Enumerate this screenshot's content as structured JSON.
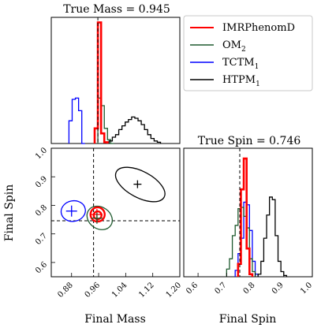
{
  "chart_data": {
    "type": "corner",
    "legend_placement": "top-right",
    "colors": {
      "IMRPhenomD": "#ff0000",
      "OM": "#1e5a2e",
      "TCTM": "#0000ff",
      "HTPM": "#000000"
    },
    "legend": [
      {
        "key": "IMRPhenomD",
        "base": "IMRPhenomD",
        "sub": ""
      },
      {
        "key": "OM",
        "base": "OM",
        "sub": "2"
      },
      {
        "key": "TCTM",
        "base": "TCTM",
        "sub": "1"
      },
      {
        "key": "HTPM",
        "base": "HTPM",
        "sub": "1"
      }
    ],
    "true_values": {
      "mass": 0.945,
      "spin": 0.746
    },
    "mass_hist": {
      "title": "True Mass = 0.945",
      "xlim": [
        0.8,
        1.2
      ],
      "ylim": [
        0,
        1.0
      ],
      "series": [
        {
          "key": "TCTM",
          "edges": [
            0.855,
            0.865,
            0.875,
            0.885,
            0.895,
            0.905
          ],
          "values": [
            0.18,
            0.35,
            0.36,
            0.26,
            0.0
          ]
        },
        {
          "key": "IMRPhenomD",
          "edges": [
            0.935,
            0.945,
            0.955,
            0.965,
            0.975
          ],
          "values": [
            0.12,
            0.96,
            0.08,
            0.01
          ]
        },
        {
          "key": "OM",
          "edges": [
            0.945,
            0.955,
            0.965,
            0.975,
            0.985,
            0.995
          ],
          "values": [
            0.36,
            0.3,
            0.12,
            0.03,
            0.0
          ]
        },
        {
          "key": "HTPM",
          "edges": [
            0.98,
            0.99,
            1.0,
            1.01,
            1.02,
            1.03,
            1.04,
            1.05,
            1.06,
            1.07,
            1.08,
            1.09,
            1.1,
            1.11,
            1.12,
            1.13,
            1.14
          ],
          "values": [
            0.02,
            0.05,
            0.07,
            0.11,
            0.14,
            0.17,
            0.19,
            0.21,
            0.2,
            0.18,
            0.15,
            0.11,
            0.07,
            0.04,
            0.02,
            0.01
          ]
        }
      ]
    },
    "spin_hist": {
      "title": "True Spin = 0.746",
      "xlabel": "Final Spin",
      "xlim": [
        0.55,
        1.0
      ],
      "ylim": [
        0,
        1.0
      ],
      "xticks": [
        "0.6",
        "0.7",
        "0.8",
        "0.9",
        "1.0"
      ],
      "series": [
        {
          "key": "OM",
          "edges": [
            0.7,
            0.71,
            0.72,
            0.73,
            0.74,
            0.75,
            0.76,
            0.77,
            0.78,
            0.79,
            0.8
          ],
          "values": [
            0.06,
            0.14,
            0.32,
            0.4,
            0.53,
            0.54,
            0.47,
            0.38,
            0.14,
            0.04
          ]
        },
        {
          "key": "TCTM",
          "edges": [
            0.73,
            0.74,
            0.75,
            0.76,
            0.77,
            0.78,
            0.79,
            0.8,
            0.81
          ],
          "values": [
            0.05,
            0.18,
            0.3,
            0.58,
            0.56,
            0.36,
            0.12,
            0.02
          ]
        },
        {
          "key": "IMRPhenomD",
          "edges": [
            0.74,
            0.75,
            0.76,
            0.77,
            0.78,
            0.79
          ],
          "values": [
            0.1,
            0.68,
            0.92,
            0.22,
            0.02
          ]
        },
        {
          "key": "HTPM",
          "edges": [
            0.81,
            0.82,
            0.83,
            0.84,
            0.85,
            0.86,
            0.87,
            0.88,
            0.89,
            0.9,
            0.91
          ],
          "values": [
            0.02,
            0.12,
            0.3,
            0.48,
            0.62,
            0.6,
            0.32,
            0.12,
            0.04,
            0.01
          ]
        }
      ]
    },
    "joint": {
      "xlabel": "Final Mass",
      "ylabel": "Final Spin",
      "xlim": [
        0.82,
        1.2
      ],
      "ylim": [
        0.55,
        1.0
      ],
      "xticks": [
        "0.88",
        "0.96",
        "1.04",
        "1.12",
        "1.20"
      ],
      "yticks": [
        "0.6",
        "0.7",
        "0.8",
        "0.9",
        "1.0"
      ],
      "markers": [
        {
          "key": "TCTM",
          "x": 0.88,
          "y": 0.78
        },
        {
          "key": "IMRPhenomD",
          "x": 0.955,
          "y": 0.768
        },
        {
          "key": "OM",
          "x": 0.955,
          "y": 0.755
        },
        {
          "key": "HTPM",
          "x": 1.075,
          "y": 0.874
        }
      ],
      "contours": [
        {
          "key": "TCTM",
          "cx": 0.885,
          "cy": 0.78,
          "rx": 0.036,
          "ry": 0.036,
          "angle": -10
        },
        {
          "key": "IMRPhenomD",
          "cx": 0.957,
          "cy": 0.768,
          "rx": 0.021,
          "ry": 0.025,
          "angle": 0,
          "inner": true
        },
        {
          "key": "OM",
          "cx": 0.963,
          "cy": 0.756,
          "rx": 0.032,
          "ry": 0.047,
          "angle": -55
        },
        {
          "key": "HTPM",
          "cx": 1.083,
          "cy": 0.873,
          "rx": 0.08,
          "ry": 0.046,
          "angle": 28
        }
      ]
    }
  }
}
